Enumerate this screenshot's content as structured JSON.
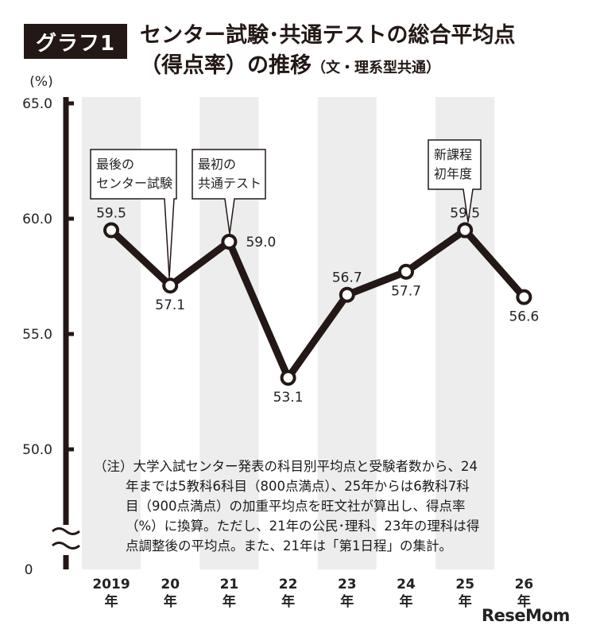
{
  "header": {
    "badge": "グラフ1",
    "title_line1": "センター試験･共通テストの総合平均点",
    "title_line2": "（得点率）の推移",
    "title_sub": "（文・理系型共通）"
  },
  "chart_data": {
    "type": "line",
    "ylabel": "(%)",
    "ylim": [
      50.0,
      65.0
    ],
    "y_ticks": [
      "65.0",
      "60.0",
      "55.0",
      "50.0"
    ],
    "y_zero_label": "0",
    "axis_break": true,
    "categories": [
      {
        "top": "2019",
        "bottom": "年"
      },
      {
        "top": "20",
        "bottom": "年"
      },
      {
        "top": "21",
        "bottom": "年"
      },
      {
        "top": "22",
        "bottom": "年"
      },
      {
        "top": "23",
        "bottom": "年"
      },
      {
        "top": "24",
        "bottom": "年"
      },
      {
        "top": "25",
        "bottom": "年"
      },
      {
        "top": "26",
        "bottom": "年"
      }
    ],
    "values": [
      59.5,
      57.1,
      59.0,
      53.1,
      56.7,
      57.7,
      59.5,
      56.6
    ],
    "value_labels": [
      "59.5",
      "57.1",
      "59.0",
      "53.1",
      "56.7",
      "57.7",
      "59.5",
      "56.6"
    ],
    "grid": false,
    "callouts": [
      {
        "index": 1,
        "lines": [
          "最後の",
          "センター試験"
        ]
      },
      {
        "index": 2,
        "lines": [
          "最初の",
          "共通テスト"
        ]
      },
      {
        "index": 6,
        "lines": [
          "新課程",
          "初年度"
        ]
      }
    ],
    "colors": {
      "line": "#231815",
      "band": "#ededed",
      "axis": "#231815"
    }
  },
  "note": {
    "lines": [
      "（注）大学入試センター発表の科目別平均点と受験者数から、24",
      "年までは5教科6科目（800点満点）、25年からは6教科7科",
      "目（900点満点）の加重平均点を旺文社が算出し、得点率",
      "（%）に換算。ただし、21年の公民･理科、23年の理科は得",
      "点調整後の平均点。また、21年は「第1日程」の集計。"
    ]
  },
  "logo": "ReseMom"
}
